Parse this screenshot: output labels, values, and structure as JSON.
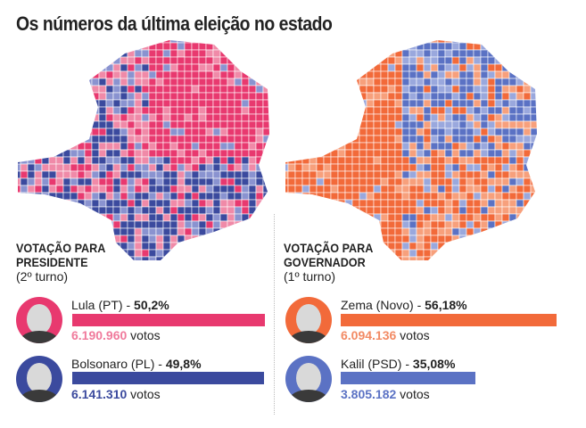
{
  "title": "Os números da última eleição no estado",
  "colors": {
    "lula": "#e8396f",
    "bolsonaro": "#3b4a9e",
    "zema": "#f26a3a",
    "kalil": "#5b72c4",
    "lula_light": "#f08aa8",
    "bolsonaro_light": "#8a93d0",
    "zema_light": "#f7a07c",
    "kalil_light": "#9aa8dd"
  },
  "president": {
    "heading_line1": "VOTAÇÃO PARA",
    "heading_line2": "PRESIDENTE",
    "round": "(2º turno)",
    "candidates": [
      {
        "name": "Lula (PT)",
        "sep": " - ",
        "pct_label": "50,2%",
        "pct": 50.2,
        "votes": "6.190.960",
        "votes_suffix": " votos",
        "color": "#e8396f"
      },
      {
        "name": "Bolsonaro (PL)",
        "sep": " - ",
        "pct_label": "49,8%",
        "pct": 49.8,
        "votes": "6.141.310",
        "votes_suffix": " votos",
        "color": "#3b4a9e"
      }
    ]
  },
  "governor": {
    "heading_line1": "VOTAÇÃO PARA",
    "heading_line2": "GOVERNADOR",
    "round": "(1º turno)",
    "candidates": [
      {
        "name": "Zema (Novo)",
        "sep": " - ",
        "pct_label": "56,18%",
        "pct": 56.18,
        "votes": "6.094.136",
        "votes_suffix": " votos",
        "color": "#f26a3a"
      },
      {
        "name": "Kalil (PSD)",
        "sep": " - ",
        "pct_label": "35,08%",
        "pct": 35.08,
        "votes": "3.805.182",
        "votes_suffix": " votos",
        "color": "#5b72c4"
      }
    ]
  }
}
